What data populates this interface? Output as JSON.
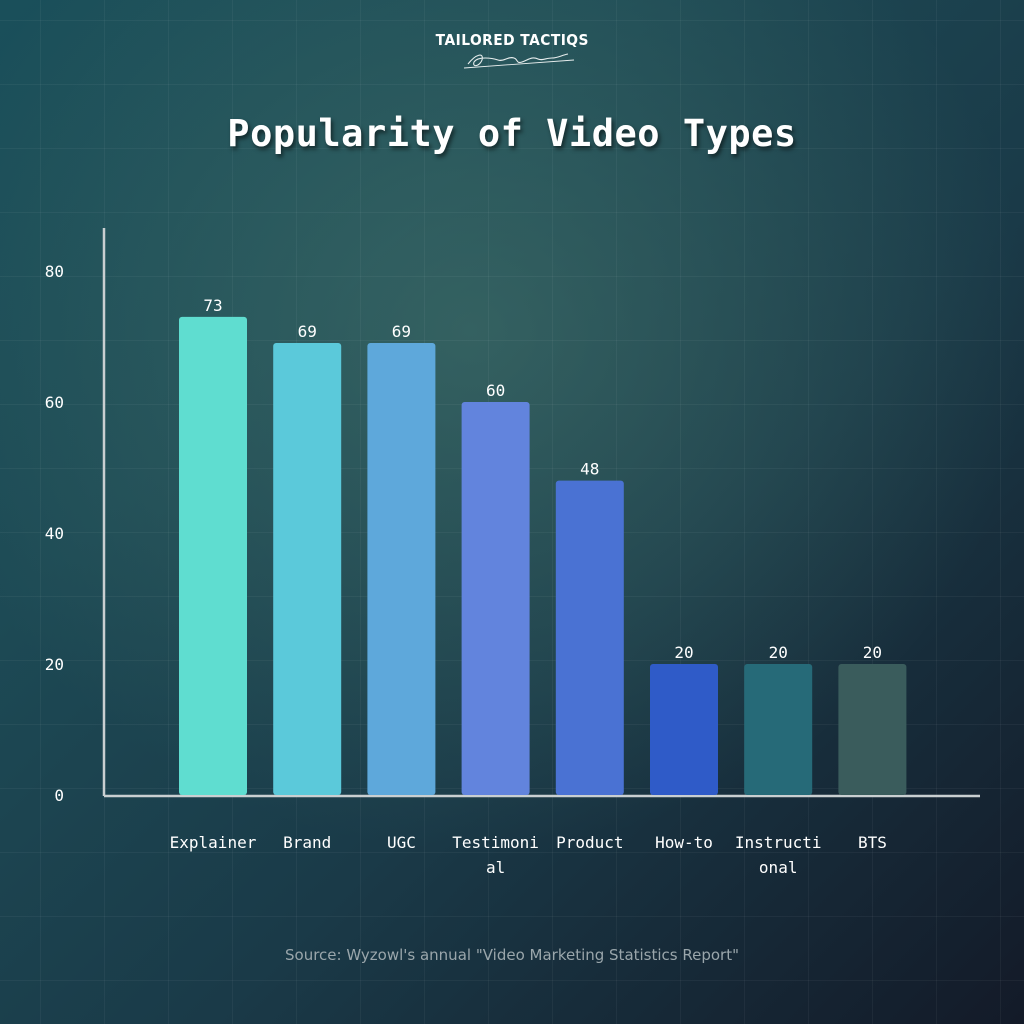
{
  "logo": {
    "brand": "TAILORED TACTIQS"
  },
  "chart_data": {
    "type": "bar",
    "title": "Popularity of Video Types",
    "categories": [
      "Explainer",
      "Brand",
      "UGC",
      "Testimonial",
      "Product",
      "How-to",
      "Instructional",
      "BTS"
    ],
    "category_label_lines": [
      [
        "Explainer"
      ],
      [
        "Brand"
      ],
      [
        "UGC"
      ],
      [
        "Testimoni",
        "al"
      ],
      [
        "Product"
      ],
      [
        "How-to"
      ],
      [
        "Instructi",
        "onal"
      ],
      [
        "BTS"
      ]
    ],
    "values": [
      73,
      69,
      69,
      60,
      48,
      20,
      20,
      20
    ],
    "bar_colors": [
      "#5fddd0",
      "#5bc9da",
      "#5ea8db",
      "#6284dd",
      "#4a72d3",
      "#2f5bc8",
      "#266a78",
      "#3a5c5c"
    ],
    "ylim": [
      0,
      80
    ],
    "yticks": [
      0,
      20,
      40,
      60,
      80
    ],
    "xlabel": "",
    "ylabel": "",
    "grid": false,
    "legend": "none"
  },
  "source": "Source: Wyzowl's annual \"Video Marketing Statistics Report\"",
  "colors": {
    "axis": "#c9cfd1",
    "text": "#ffffff"
  }
}
